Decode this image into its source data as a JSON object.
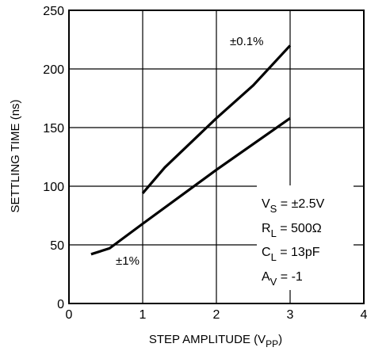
{
  "chart_data": {
    "type": "line",
    "title": "",
    "xlabel": "STEP AMPLITUDE (V",
    "xlabel_sub": "PP",
    "xlabel_close": ")",
    "ylabel": "SETTLING TIME (ns)",
    "xlim": [
      0,
      4
    ],
    "ylim": [
      0,
      250
    ],
    "xticks": [
      0,
      1,
      2,
      3,
      4
    ],
    "yticks": [
      0,
      50,
      100,
      150,
      200,
      250
    ],
    "grid": true,
    "series": [
      {
        "name": "±0.1%",
        "x": [
          1.0,
          1.3,
          2.0,
          2.5,
          3.0
        ],
        "y": [
          94,
          116,
          158,
          186,
          220
        ]
      },
      {
        "name": "±1%",
        "x": [
          0.3,
          0.55,
          1.0,
          2.0,
          3.0
        ],
        "y": [
          42,
          47,
          68,
          114,
          158
        ]
      }
    ],
    "conditions": [
      {
        "main": "V",
        "sub": "S",
        "rest": " = ±2.5V"
      },
      {
        "main": "R",
        "sub": "L",
        "rest": " = 500Ω"
      },
      {
        "main": "C",
        "sub": "L",
        "rest": " = 13pF"
      },
      {
        "main": "A",
        "sub": "V",
        "rest": " = -1"
      }
    ]
  }
}
